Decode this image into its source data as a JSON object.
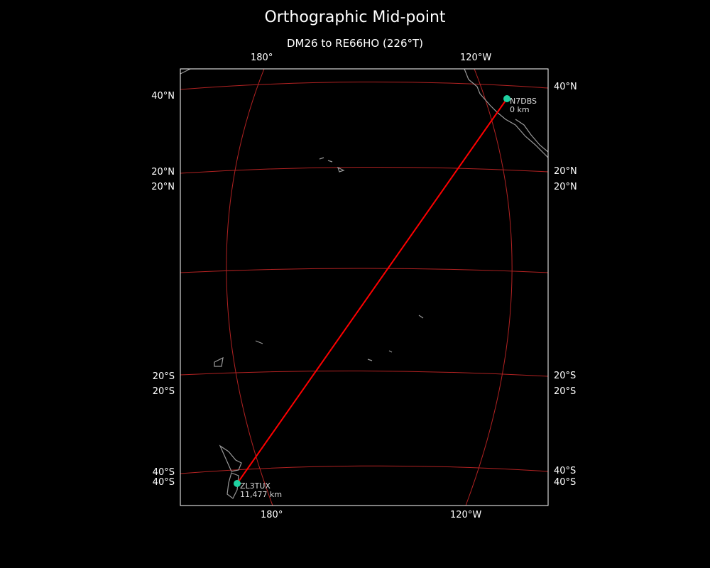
{
  "title": "Orthographic Mid-point",
  "subtitle": "DM26 to RE66HO (226°T)",
  "gridline_labels": {
    "top": [
      "180°",
      "120°W"
    ],
    "bottom": [
      "180°",
      "120°W"
    ],
    "left": [
      "40°N",
      "20°N",
      "20°N",
      "20°S",
      "20°S",
      "40°S",
      "40°S"
    ],
    "right": [
      "40°N",
      "20°N",
      "20°N",
      "20°S",
      "20°S",
      "40°S",
      "40°S"
    ]
  },
  "stations": [
    {
      "call": "N7DBS",
      "distance": "0 km"
    },
    {
      "call": "ZL3TUX",
      "distance": "11,477 km"
    }
  ],
  "colors": {
    "background": "#000000",
    "path": "#ff0000",
    "gridlines": "#b22222",
    "marker": "#1fd1a1",
    "coastline": "#999999"
  }
}
